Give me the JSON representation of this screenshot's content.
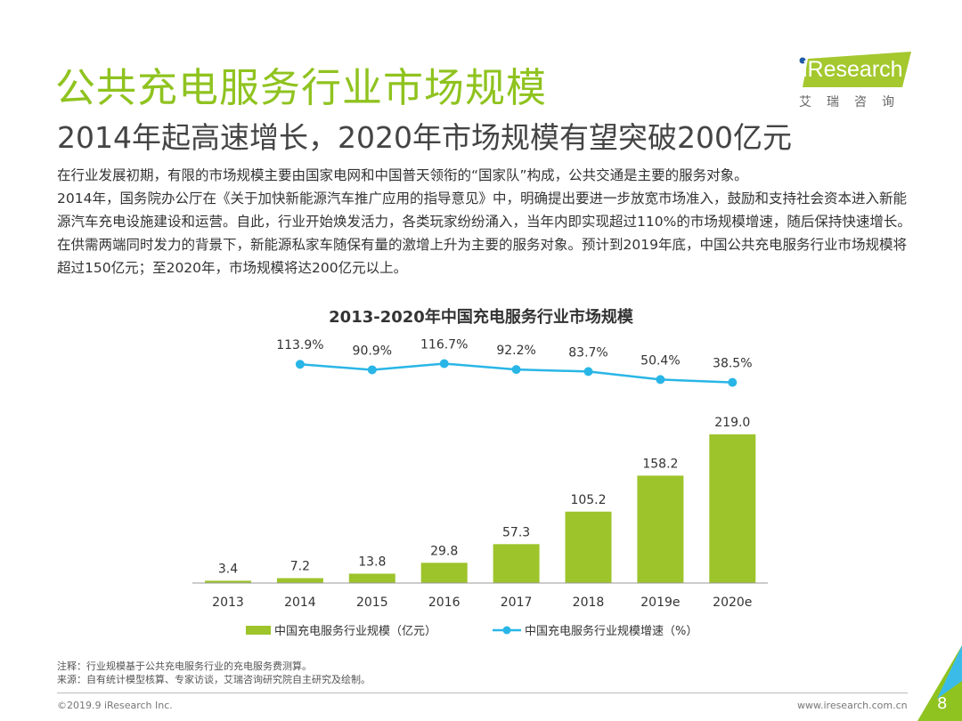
{
  "header": {
    "title": "公共充电服务行业市场规模",
    "subtitle": "2014年起高速增长，2020年市场规模有望突破200亿元",
    "logo_text": "iResearch",
    "logo_cn": "艾瑞咨询"
  },
  "body_paragraphs": [
    "在行业发展初期，有限的市场规模主要由国家电网和中国普天领衔的“国家队”构成，公共交通是主要的服务对象。",
    "2014年，国务院办公厅在《关于加快新能源汽车推广应用的指导意见》中，明确提出要进一步放宽市场准入，鼓励和支持社会资本进入新能源汽车充电设施建设和运营。自此，行业开始焕发活力，各类玩家纷纷涌入，当年内即实现超过110%的市场规模增速，随后保持快速增长。在供需两端同时发力的背景下，新能源私家车随保有量的激增上升为主要的服务对象。预计到2019年底，中国公共充电服务行业市场规模将超过150亿元；至2020年，市场规模将达200亿元以上。"
  ],
  "chart_data": {
    "type": "bar+line",
    "title": "2013-2020年中国充电服务行业市场规模",
    "categories": [
      "2013",
      "2014",
      "2015",
      "2016",
      "2017",
      "2018",
      "2019e",
      "2020e"
    ],
    "series": [
      {
        "name": "中国充电服务行业规模（亿元）",
        "type": "bar",
        "values": [
          3.4,
          7.2,
          13.8,
          29.8,
          57.3,
          105.2,
          158.2,
          219.0
        ],
        "labels": [
          "3.4",
          "7.2",
          "13.8",
          "29.8",
          "57.3",
          "105.2",
          "158.2",
          "219.0"
        ],
        "color": "#9dc42b"
      },
      {
        "name": "中国充电服务行业规模增速（%）",
        "type": "line",
        "values": [
          null,
          113.9,
          90.9,
          116.7,
          92.2,
          83.7,
          50.4,
          38.5
        ],
        "labels": [
          "",
          "113.9%",
          "90.9%",
          "116.7%",
          "92.2%",
          "83.7%",
          "50.4%",
          "38.5%"
        ],
        "color": "#29b6e6"
      }
    ],
    "legend_position": "bottom",
    "grid": false
  },
  "footer": {
    "note": "注释：行业规模基于公共充电服务行业的充电服务费测算。",
    "source": "来源：自有统计模型核算、专家访谈，艾瑞咨询研究院自主研究及绘制。",
    "copyright": "©2019.9  iResearch Inc.",
    "website": "www.iresearch.com.cn",
    "page_number": "8"
  },
  "colors": {
    "accent": "#8fc31f",
    "line": "#29b6e6",
    "bar": "#9dc42b"
  }
}
